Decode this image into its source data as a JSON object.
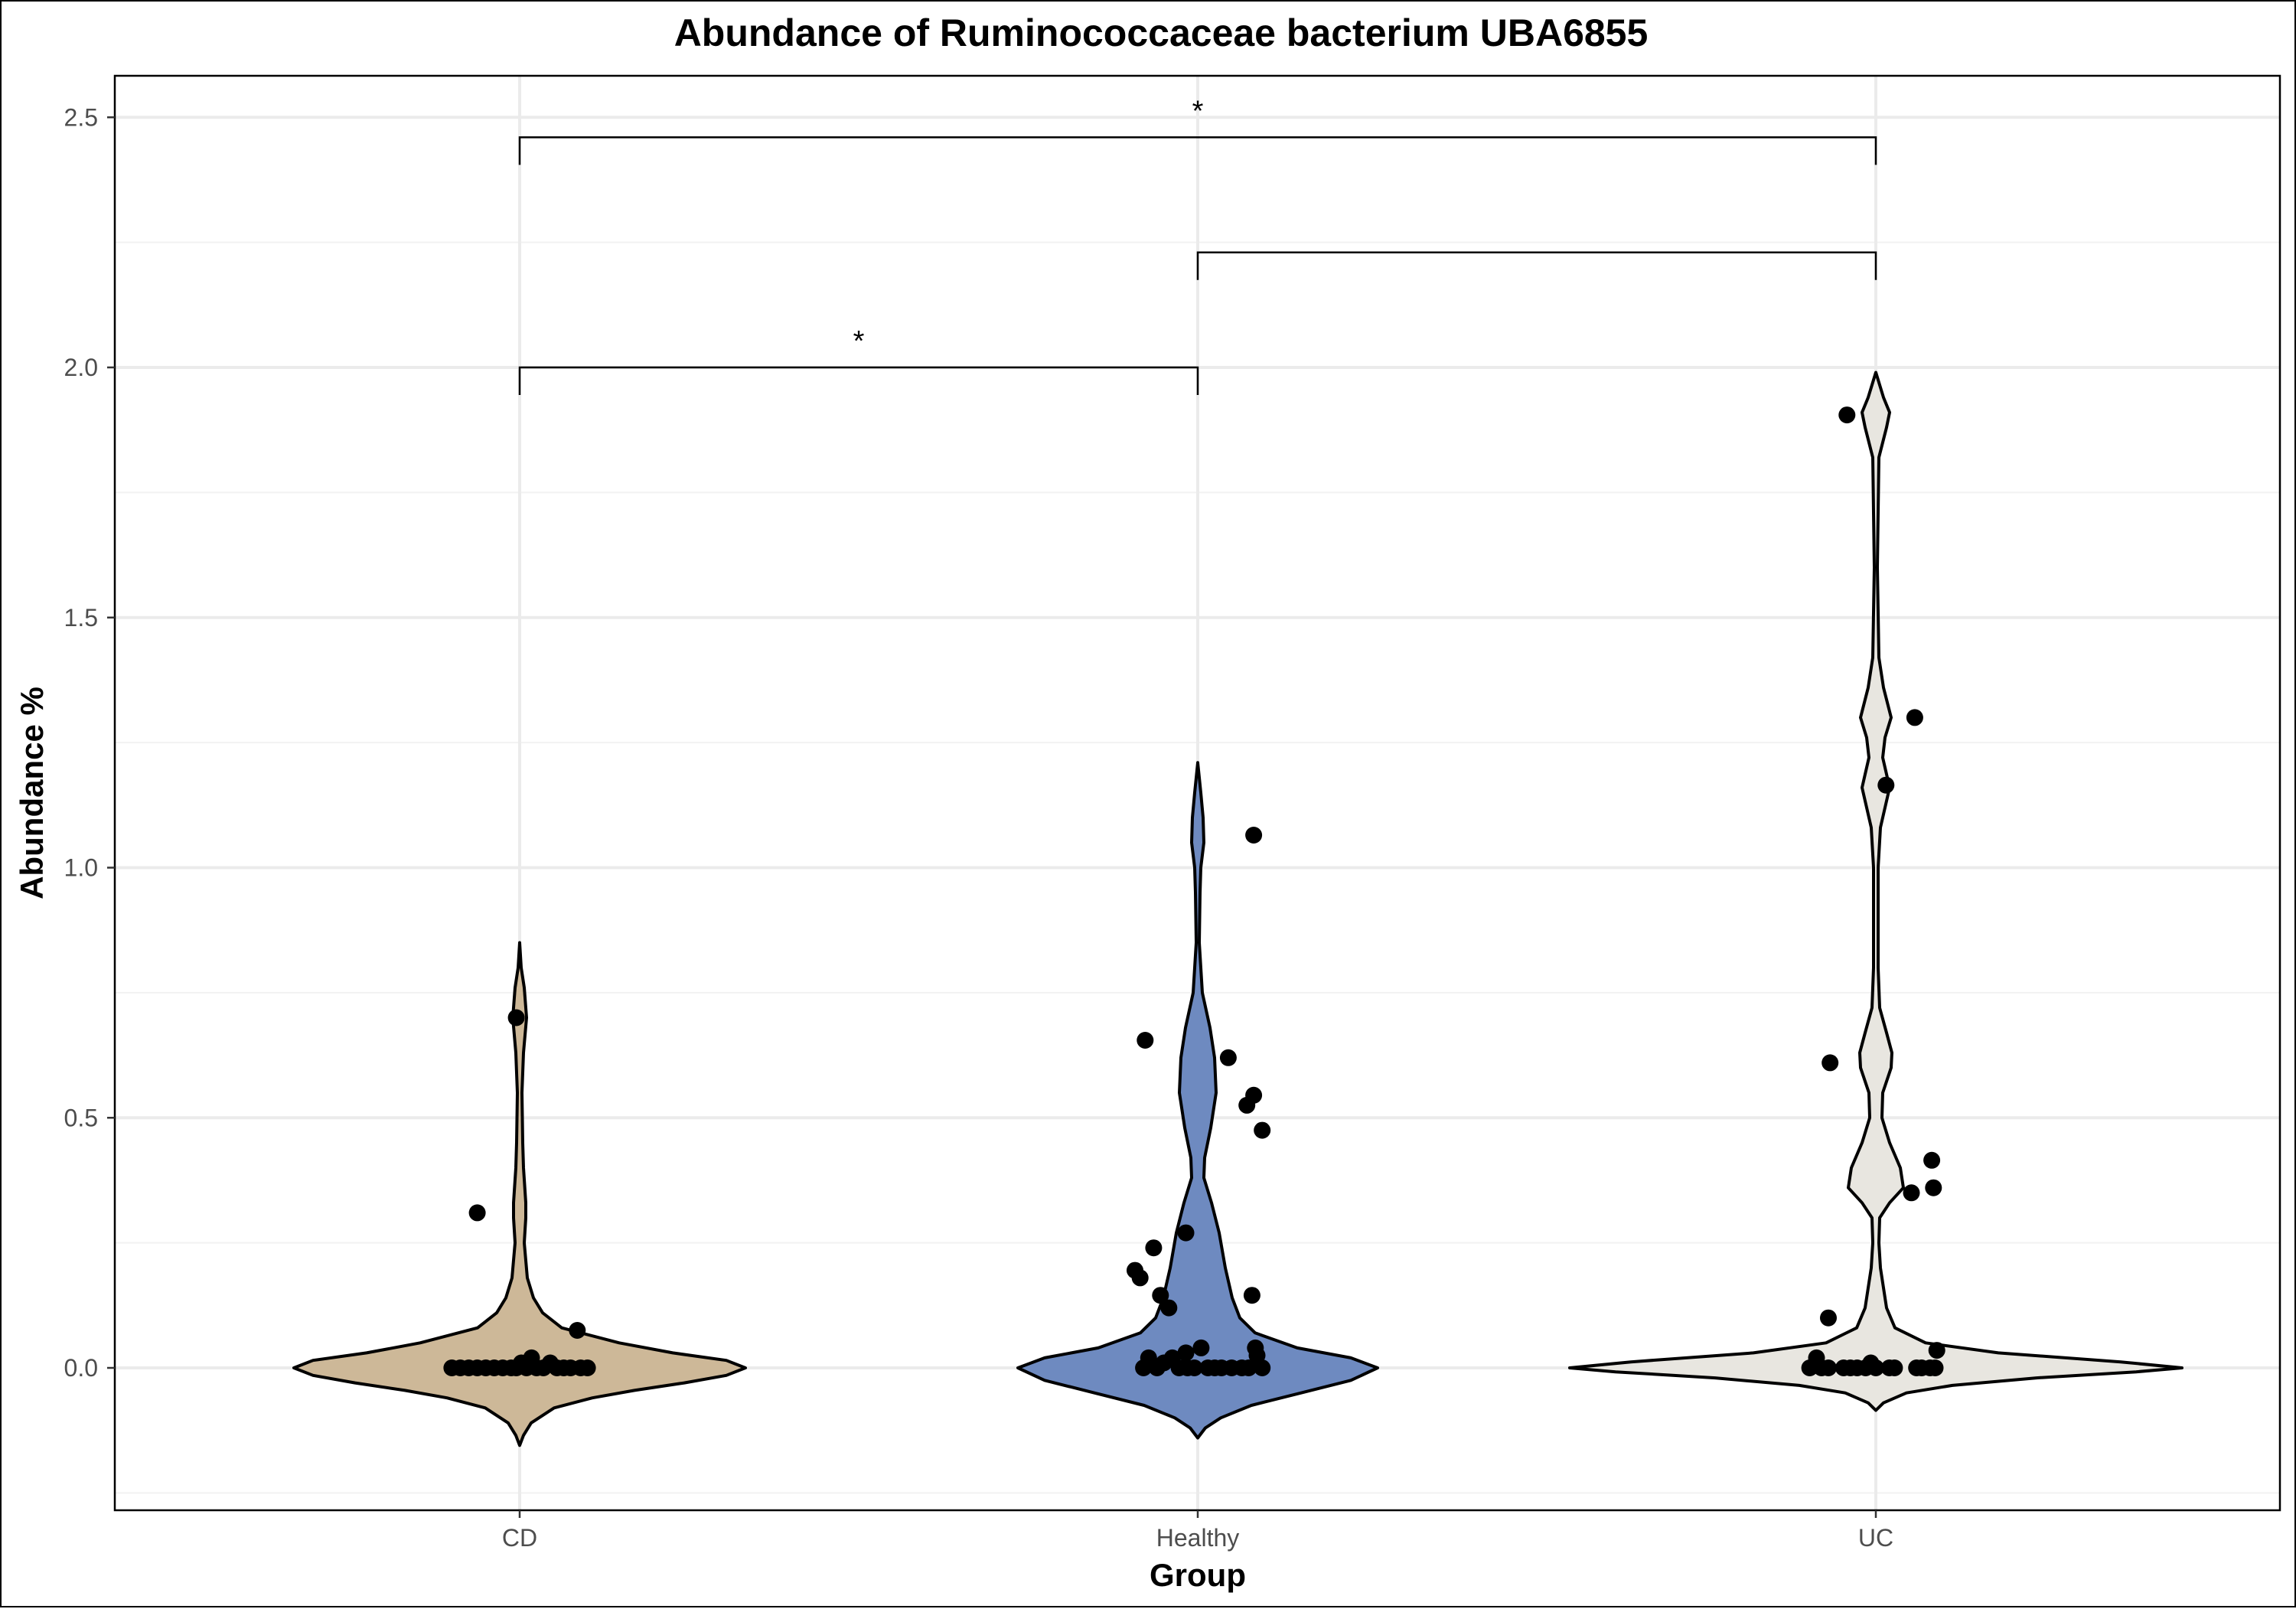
{
  "chart_data": {
    "type": "violin",
    "title": "Abundance of Ruminococcaceae bacterium UBA6855",
    "xlabel": "Group",
    "ylabel": "Abundance %",
    "categories": [
      "CD",
      "Healthy",
      "UC"
    ],
    "ylim": [
      -0.28,
      2.6
    ],
    "yticks": [
      0.0,
      0.5,
      1.0,
      1.5,
      2.0,
      2.5
    ],
    "ytick_labels": [
      "0.0",
      "0.5",
      "1.0",
      "1.5",
      "2.0",
      "2.5"
    ],
    "grid": true,
    "legend": "none",
    "series": [
      {
        "group": "CD",
        "fill_color": "#cdb898",
        "violin_range": [
          -0.155,
          0.85
        ],
        "points": [
          {
            "x": -0.2,
            "y": 0.0
          },
          {
            "x": -0.175,
            "y": 0.0
          },
          {
            "x": -0.15,
            "y": 0.0
          },
          {
            "x": -0.125,
            "y": 0.0
          },
          {
            "x": -0.1,
            "y": 0.0
          },
          {
            "x": -0.075,
            "y": 0.0
          },
          {
            "x": -0.05,
            "y": 0.0
          },
          {
            "x": -0.025,
            "y": 0.0
          },
          {
            "x": -0.01,
            "y": 0.0
          },
          {
            "x": 0.005,
            "y": 0.01
          },
          {
            "x": 0.02,
            "y": 0.0
          },
          {
            "x": 0.035,
            "y": 0.02
          },
          {
            "x": 0.05,
            "y": 0.0
          },
          {
            "x": 0.07,
            "y": 0.0
          },
          {
            "x": 0.09,
            "y": 0.01
          },
          {
            "x": 0.11,
            "y": 0.0
          },
          {
            "x": 0.13,
            "y": 0.0
          },
          {
            "x": 0.15,
            "y": 0.0
          },
          {
            "x": 0.18,
            "y": 0.0
          },
          {
            "x": 0.2,
            "y": 0.0
          },
          {
            "x": 0.17,
            "y": 0.075
          },
          {
            "x": -0.125,
            "y": 0.31
          },
          {
            "x": -0.01,
            "y": 0.7
          }
        ]
      },
      {
        "group": "Healthy",
        "fill_color": "#6e8ac0",
        "violin_range": [
          -0.14,
          1.21
        ],
        "points": [
          {
            "x": -0.16,
            "y": 0.0
          },
          {
            "x": -0.145,
            "y": 0.02
          },
          {
            "x": -0.12,
            "y": 0.0
          },
          {
            "x": -0.1,
            "y": 0.01
          },
          {
            "x": -0.075,
            "y": 0.02
          },
          {
            "x": -0.055,
            "y": 0.0
          },
          {
            "x": -0.03,
            "y": 0.0
          },
          {
            "x": -0.01,
            "y": 0.0
          },
          {
            "x": 0.01,
            "y": 0.04
          },
          {
            "x": 0.03,
            "y": 0.0
          },
          {
            "x": 0.05,
            "y": 0.0
          },
          {
            "x": 0.07,
            "y": 0.0
          },
          {
            "x": 0.1,
            "y": 0.0
          },
          {
            "x": 0.13,
            "y": 0.0
          },
          {
            "x": 0.15,
            "y": 0.0
          },
          {
            "x": 0.17,
            "y": 0.04
          },
          {
            "x": 0.19,
            "y": 0.0
          },
          {
            "x": -0.035,
            "y": 0.03
          },
          {
            "x": 0.175,
            "y": 0.025
          },
          {
            "x": -0.185,
            "y": 0.195
          },
          {
            "x": -0.17,
            "y": 0.18
          },
          {
            "x": -0.13,
            "y": 0.24
          },
          {
            "x": -0.11,
            "y": 0.145
          },
          {
            "x": -0.085,
            "y": 0.12
          },
          {
            "x": -0.035,
            "y": 0.27
          },
          {
            "x": 0.16,
            "y": 0.145
          },
          {
            "x": -0.155,
            "y": 0.655
          },
          {
            "x": 0.09,
            "y": 0.62
          },
          {
            "x": 0.145,
            "y": 0.525
          },
          {
            "x": 0.165,
            "y": 0.545
          },
          {
            "x": 0.19,
            "y": 0.475
          },
          {
            "x": 0.165,
            "y": 1.065
          }
        ]
      },
      {
        "group": "UC",
        "fill_color": "#e8e6e0",
        "violin_range": [
          -0.085,
          1.99
        ],
        "points": [
          {
            "x": -0.195,
            "y": 0.0
          },
          {
            "x": -0.175,
            "y": 0.02
          },
          {
            "x": -0.16,
            "y": 0.0
          },
          {
            "x": -0.14,
            "y": 0.0
          },
          {
            "x": -0.095,
            "y": 0.0
          },
          {
            "x": -0.075,
            "y": 0.0
          },
          {
            "x": -0.055,
            "y": 0.0
          },
          {
            "x": -0.03,
            "y": 0.0
          },
          {
            "x": -0.015,
            "y": 0.01
          },
          {
            "x": 0.0,
            "y": 0.0
          },
          {
            "x": 0.04,
            "y": 0.0
          },
          {
            "x": 0.055,
            "y": 0.0
          },
          {
            "x": 0.12,
            "y": 0.0
          },
          {
            "x": 0.135,
            "y": 0.0
          },
          {
            "x": 0.16,
            "y": 0.0
          },
          {
            "x": 0.175,
            "y": 0.0
          },
          {
            "x": 0.18,
            "y": 0.035
          },
          {
            "x": -0.14,
            "y": 0.1
          },
          {
            "x": -0.135,
            "y": 0.61
          },
          {
            "x": 0.105,
            "y": 0.35
          },
          {
            "x": 0.17,
            "y": 0.36
          },
          {
            "x": 0.165,
            "y": 0.415
          },
          {
            "x": 0.115,
            "y": 1.3
          },
          {
            "x": 0.03,
            "y": 1.165
          },
          {
            "x": -0.085,
            "y": 1.905
          }
        ]
      }
    ],
    "significance": [
      {
        "from": "CD",
        "to": "Healthy",
        "y": 2.0,
        "label": "*"
      },
      {
        "from": "Healthy",
        "to": "UC",
        "y": 2.23,
        "label": ""
      },
      {
        "from": "CD",
        "to": "UC",
        "y": 2.46,
        "label": "*"
      }
    ]
  }
}
